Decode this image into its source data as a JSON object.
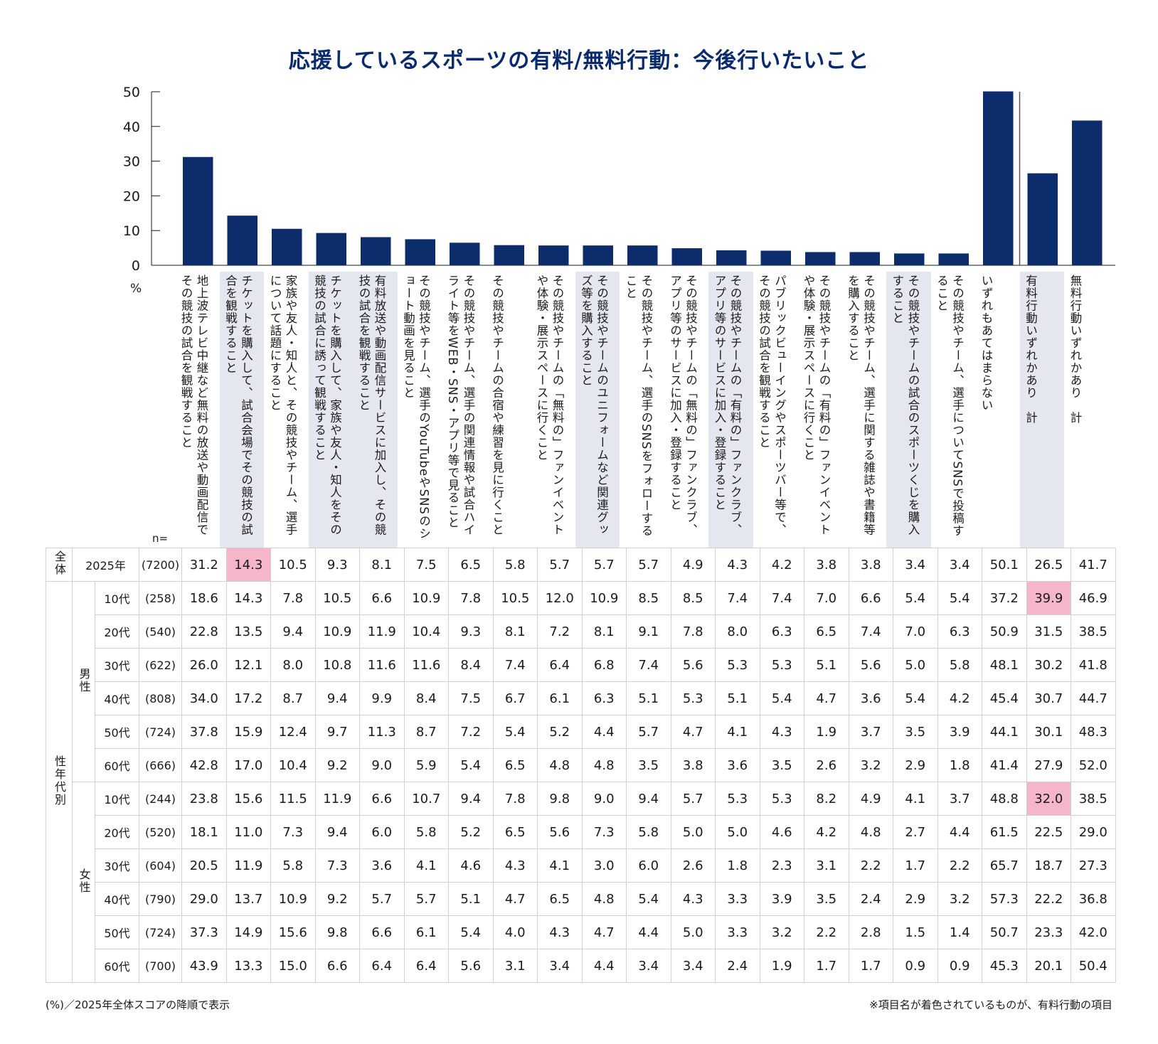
{
  "title": "応援しているスポーツの有料/無料行動：今後行いたいこと",
  "unit_label": "%",
  "n_label": "n=",
  "footnote_left": "(%)／2025年全体スコアの降順で表示",
  "footnote_right": "※項目名が着色されているものが、有料行動の項目",
  "colors": {
    "bar": "#0d2c6b",
    "paid_label_bg": "#e4e7ef",
    "highlight": "#f4b6c8",
    "grid": "#d0d0d0"
  },
  "groups": {
    "total": "全体",
    "segment": "性年代別",
    "male": "男性",
    "female": "女性",
    "year": "2025年"
  },
  "chart_data": {
    "type": "bar",
    "title": "応援しているスポーツの有料/無料行動：今後行いたいこと",
    "ylabel": "%",
    "ylim": [
      0,
      50
    ],
    "yticks": [
      0,
      10,
      20,
      30,
      40,
      50
    ],
    "categories": [
      "地上波テレビ中継など無料の放送や動画配信でその競技の試合を観戦すること",
      "チケットを購入して、試合会場でその競技の試合を観戦すること",
      "家族や友人・知人と、その競技やチーム、選手について話題にすること",
      "チケットを購入して、家族や友人・知人をその競技の試合に誘って観戦すること",
      "有料放送や動画配信サービスに加入し、その競技の試合を観戦すること",
      "その競技やチーム、選手のYouTubeやSNSのショート動画を見ること",
      "その競技やチーム、選手の関連情報や試合ハイライト等をWEB・SNS・アプリ等で見ること",
      "その競技やチームの合宿や練習を見に行くこと",
      "その競技やチームの「無料の」ファンイベントや体験・展示スペースに行くこと",
      "その競技やチームのユニフォームなど関連グッズ等を購入すること",
      "その競技やチーム、選手のSNSをフォローすること",
      "その競技やチームの「無料の」ファンクラブ、アプリ等のサービスに加入・登録すること",
      "その競技やチームの「有料の」ファンクラブ、アプリ等のサービスに加入・登録すること",
      "パブリックビューイングやスポーツバー等で、その競技の試合を観戦すること",
      "その競技やチームの「有料の」ファンイベントや体験・展示スペースに行くこと",
      "その競技やチーム、選手に関する雑誌や書籍等を購入すること",
      "その競技やチームの試合のスポーツくじを購入すること",
      "その競技やチーム、選手についてSNSで投稿すること",
      "いずれもあてはまらない",
      "有料行動いずれかあり　計",
      "無料行動いずれかあり　計"
    ],
    "paid": [
      false,
      true,
      false,
      true,
      true,
      false,
      false,
      false,
      false,
      true,
      false,
      false,
      true,
      false,
      false,
      false,
      true,
      false,
      false,
      true,
      false
    ],
    "values": [
      31.2,
      14.3,
      10.5,
      9.3,
      8.1,
      7.5,
      6.5,
      5.8,
      5.7,
      5.7,
      5.7,
      4.9,
      4.3,
      4.2,
      3.8,
      3.8,
      3.4,
      3.4,
      50.1,
      26.5,
      41.7
    ]
  },
  "table_rows": [
    {
      "group": "total",
      "age": "2025年",
      "n": "(7200)",
      "values": [
        "31.2",
        "14.3",
        "10.5",
        "9.3",
        "8.1",
        "7.5",
        "6.5",
        "5.8",
        "5.7",
        "5.7",
        "5.7",
        "4.9",
        "4.3",
        "4.2",
        "3.8",
        "3.8",
        "3.4",
        "3.4",
        "50.1",
        "26.5",
        "41.7"
      ],
      "highlight": [
        1
      ]
    },
    {
      "group": "male",
      "age": "10代",
      "n": "(258)",
      "values": [
        "18.6",
        "14.3",
        "7.8",
        "10.5",
        "6.6",
        "10.9",
        "7.8",
        "10.5",
        "12.0",
        "10.9",
        "8.5",
        "8.5",
        "7.4",
        "7.4",
        "7.0",
        "6.6",
        "5.4",
        "5.4",
        "37.2",
        "39.9",
        "46.9"
      ],
      "highlight": [
        19
      ]
    },
    {
      "group": "male",
      "age": "20代",
      "n": "(540)",
      "values": [
        "22.8",
        "13.5",
        "9.4",
        "10.9",
        "11.9",
        "10.4",
        "9.3",
        "8.1",
        "7.2",
        "8.1",
        "9.1",
        "7.8",
        "8.0",
        "6.3",
        "6.5",
        "7.4",
        "7.0",
        "6.3",
        "50.9",
        "31.5",
        "38.5"
      ],
      "highlight": []
    },
    {
      "group": "male",
      "age": "30代",
      "n": "(622)",
      "values": [
        "26.0",
        "12.1",
        "8.0",
        "10.8",
        "11.6",
        "11.6",
        "8.4",
        "7.4",
        "6.4",
        "6.8",
        "7.4",
        "5.6",
        "5.3",
        "5.3",
        "5.1",
        "5.6",
        "5.0",
        "5.8",
        "48.1",
        "30.2",
        "41.8"
      ],
      "highlight": []
    },
    {
      "group": "male",
      "age": "40代",
      "n": "(808)",
      "values": [
        "34.0",
        "17.2",
        "8.7",
        "9.4",
        "9.9",
        "8.4",
        "7.5",
        "6.7",
        "6.1",
        "6.3",
        "5.1",
        "5.3",
        "5.1",
        "5.4",
        "4.7",
        "3.6",
        "5.4",
        "4.2",
        "45.4",
        "30.7",
        "44.7"
      ],
      "highlight": []
    },
    {
      "group": "male",
      "age": "50代",
      "n": "(724)",
      "values": [
        "37.8",
        "15.9",
        "12.4",
        "9.7",
        "11.3",
        "8.7",
        "7.2",
        "5.4",
        "5.2",
        "4.4",
        "5.7",
        "4.7",
        "4.1",
        "4.3",
        "1.9",
        "3.7",
        "3.5",
        "3.9",
        "44.1",
        "30.1",
        "48.3"
      ],
      "highlight": []
    },
    {
      "group": "male",
      "age": "60代",
      "n": "(666)",
      "values": [
        "42.8",
        "17.0",
        "10.4",
        "9.2",
        "9.0",
        "5.9",
        "5.4",
        "6.5",
        "4.8",
        "4.8",
        "3.5",
        "3.8",
        "3.6",
        "3.5",
        "2.6",
        "3.2",
        "2.9",
        "1.8",
        "41.4",
        "27.9",
        "52.0"
      ],
      "highlight": []
    },
    {
      "group": "female",
      "age": "10代",
      "n": "(244)",
      "values": [
        "23.8",
        "15.6",
        "11.5",
        "11.9",
        "6.6",
        "10.7",
        "9.4",
        "7.8",
        "9.8",
        "9.0",
        "9.4",
        "5.7",
        "5.3",
        "5.3",
        "8.2",
        "4.9",
        "4.1",
        "3.7",
        "48.8",
        "32.0",
        "38.5"
      ],
      "highlight": [
        19
      ]
    },
    {
      "group": "female",
      "age": "20代",
      "n": "(520)",
      "values": [
        "18.1",
        "11.0",
        "7.3",
        "9.4",
        "6.0",
        "5.8",
        "5.2",
        "6.5",
        "5.6",
        "7.3",
        "5.8",
        "5.0",
        "5.0",
        "4.6",
        "4.2",
        "4.8",
        "2.7",
        "4.4",
        "61.5",
        "22.5",
        "29.0"
      ],
      "highlight": []
    },
    {
      "group": "female",
      "age": "30代",
      "n": "(604)",
      "values": [
        "20.5",
        "11.9",
        "5.8",
        "7.3",
        "3.6",
        "4.1",
        "4.6",
        "4.3",
        "4.1",
        "3.0",
        "6.0",
        "2.6",
        "1.8",
        "2.3",
        "3.1",
        "2.2",
        "1.7",
        "2.2",
        "65.7",
        "18.7",
        "27.3"
      ],
      "highlight": []
    },
    {
      "group": "female",
      "age": "40代",
      "n": "(790)",
      "values": [
        "29.0",
        "13.7",
        "10.9",
        "9.2",
        "5.7",
        "5.7",
        "5.1",
        "4.7",
        "6.5",
        "4.8",
        "5.4",
        "4.3",
        "3.3",
        "3.9",
        "3.5",
        "2.4",
        "2.9",
        "3.2",
        "57.3",
        "22.2",
        "36.8"
      ],
      "highlight": []
    },
    {
      "group": "female",
      "age": "50代",
      "n": "(724)",
      "values": [
        "37.3",
        "14.9",
        "15.6",
        "9.8",
        "6.6",
        "6.1",
        "5.4",
        "4.0",
        "4.3",
        "4.7",
        "4.4",
        "5.0",
        "3.3",
        "3.2",
        "2.2",
        "2.8",
        "1.5",
        "1.4",
        "50.7",
        "23.3",
        "42.0"
      ],
      "highlight": []
    },
    {
      "group": "female",
      "age": "60代",
      "n": "(700)",
      "values": [
        "43.9",
        "13.3",
        "15.0",
        "6.6",
        "6.4",
        "6.4",
        "5.6",
        "3.1",
        "3.4",
        "4.4",
        "3.4",
        "3.4",
        "2.4",
        "1.9",
        "1.7",
        "1.7",
        "0.9",
        "0.9",
        "45.3",
        "20.1",
        "50.4"
      ],
      "highlight": []
    }
  ]
}
